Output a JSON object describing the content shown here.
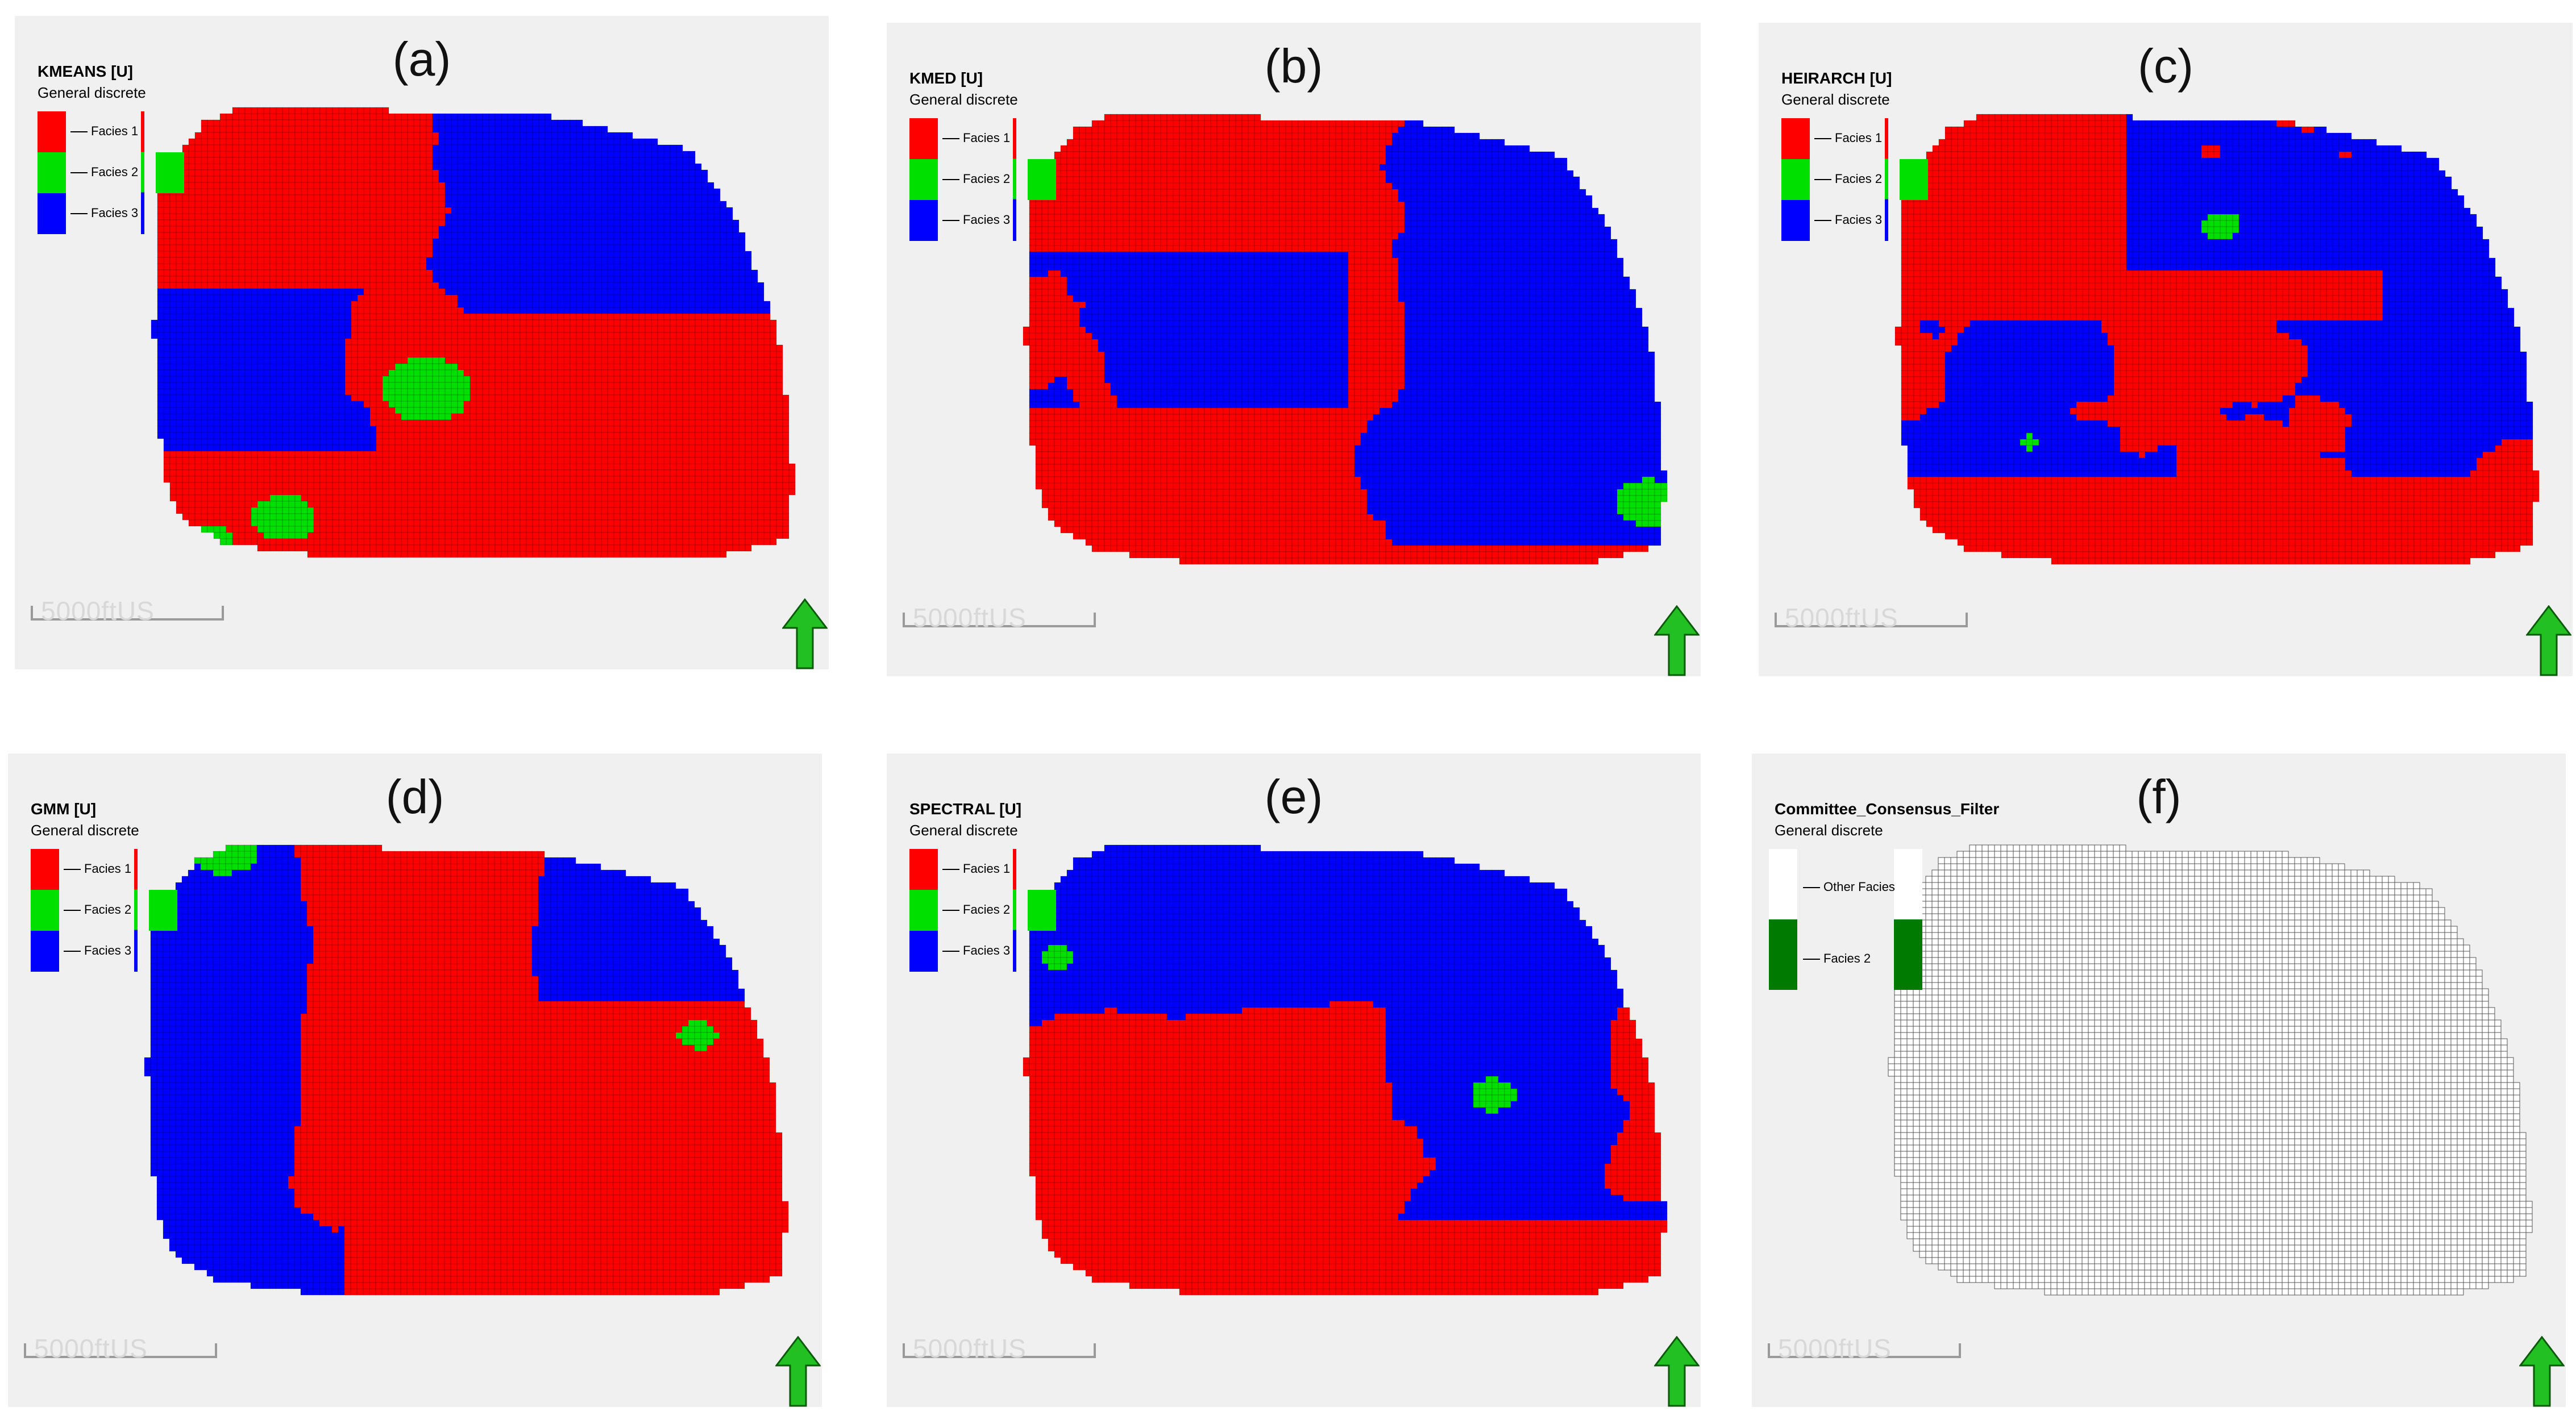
{
  "panels": [
    {
      "id": "a",
      "label": "(a)",
      "title": "KMEANS [U]",
      "subtitle": "General discrete",
      "legend": [
        {
          "name": "Facies 1",
          "color": "#ff0000"
        },
        {
          "name": "Facies 2",
          "color": "#00e000"
        },
        {
          "name": "Facies 3",
          "color": "#0000ff"
        }
      ],
      "scale_bar": "5000ftUS",
      "dominant_pattern": "red majority, blue north-east, green patches south"
    },
    {
      "id": "b",
      "label": "(b)",
      "title": "KMED [U]",
      "subtitle": "General discrete",
      "legend": [
        {
          "name": "Facies 1",
          "color": "#ff0000"
        },
        {
          "name": "Facies 2",
          "color": "#00e000"
        },
        {
          "name": "Facies 3",
          "color": "#0000ff"
        }
      ],
      "scale_bar": "5000ftUS"
    },
    {
      "id": "c",
      "label": "(c)",
      "title": "HEIRARCH [U]",
      "subtitle": "General discrete",
      "legend": [
        {
          "name": "Facies 1",
          "color": "#ff0000"
        },
        {
          "name": "Facies 2",
          "color": "#00e000"
        },
        {
          "name": "Facies 3",
          "color": "#0000ff"
        }
      ],
      "scale_bar": "5000ftUS"
    },
    {
      "id": "d",
      "label": "(d)",
      "title": "GMM [U]",
      "subtitle": "General discrete",
      "legend": [
        {
          "name": "Facies 1",
          "color": "#ff0000"
        },
        {
          "name": "Facies 2",
          "color": "#00e000"
        },
        {
          "name": "Facies 3",
          "color": "#0000ff"
        }
      ],
      "scale_bar": "5000ftUS"
    },
    {
      "id": "e",
      "label": "(e)",
      "title": "SPECTRAL [U]",
      "subtitle": "General discrete",
      "legend": [
        {
          "name": "Facies 1",
          "color": "#ff0000"
        },
        {
          "name": "Facies 2",
          "color": "#00e000"
        },
        {
          "name": "Facies 3",
          "color": "#0000ff"
        }
      ],
      "scale_bar": "5000ftUS"
    },
    {
      "id": "f",
      "label": "(f)",
      "title": "Committee_Consensus_Filter",
      "subtitle": "General discrete",
      "legend": [
        {
          "name": "Other Facies",
          "color": "#ffffff"
        },
        {
          "name": "Facies 2",
          "color": "#007a00"
        }
      ],
      "scale_bar": "5000ftUS"
    }
  ],
  "colors": {
    "facies1": "#ff0000",
    "facies2": "#00e000",
    "facies3": "#0000ff",
    "facies2_dark": "#007a00",
    "north_arrow": "#22c022",
    "panel_bg": "#f0f0f0"
  }
}
